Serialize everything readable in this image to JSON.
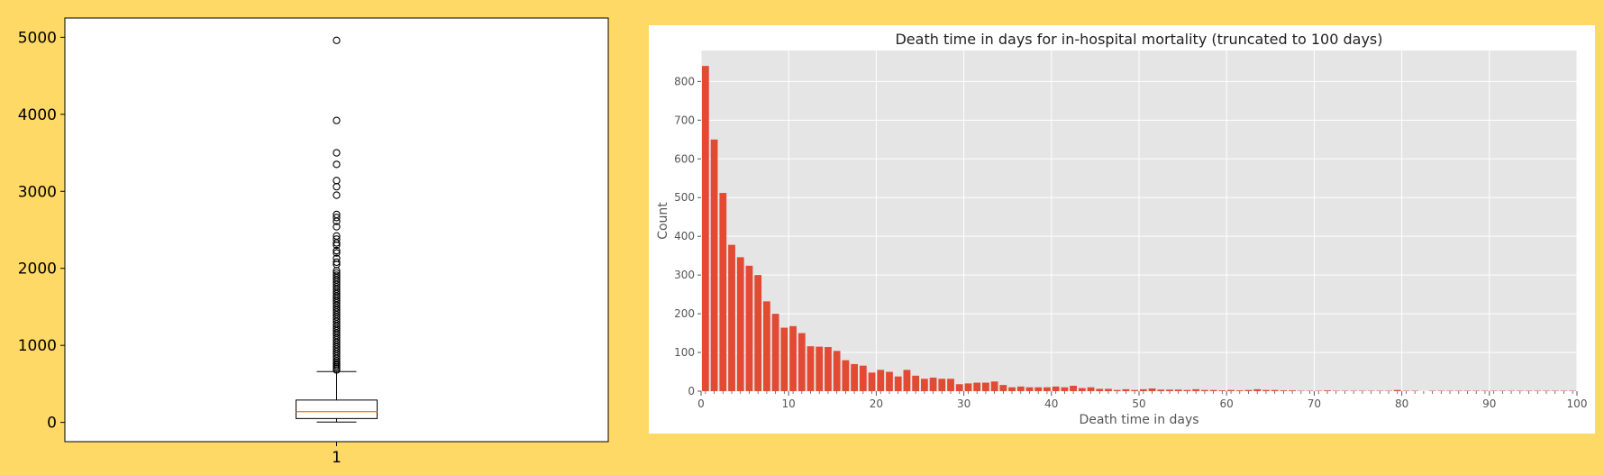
{
  "colors": {
    "background": "#FFD966",
    "hist_bar": "#E24A33",
    "hist_panel_bg": "#E5E5E5",
    "median_line": "#FF7F0E",
    "axis_text": "#555555"
  },
  "chart_data": [
    {
      "type": "boxplot",
      "title": "",
      "xlabel": "",
      "ylabel": "",
      "categories": [
        "1"
      ],
      "ylim": [
        -250,
        5250
      ],
      "yticks": [
        0,
        1000,
        2000,
        3000,
        4000,
        5000
      ],
      "box": {
        "whisker_low": 5,
        "q1": 50,
        "median": 140,
        "q3": 290,
        "whisker_high": 660
      },
      "outliers": [
        4960,
        3920,
        3500,
        3350,
        3140,
        3060,
        2950,
        2700,
        2660,
        2610,
        2540,
        2420,
        2380,
        2330,
        2300,
        2230,
        2200,
        2130,
        2080,
        2050,
        1970,
        1940,
        1910,
        1880,
        1850,
        1820,
        1790,
        1760,
        1730,
        1700,
        1670,
        1640,
        1610,
        1580,
        1550,
        1520,
        1490,
        1460,
        1430,
        1400,
        1370,
        1340,
        1310,
        1280,
        1250,
        1220,
        1190,
        1160,
        1130,
        1100,
        1070,
        1040,
        1010,
        980,
        950,
        920,
        890,
        860,
        830,
        800,
        780,
        760,
        740,
        720,
        700,
        680
      ],
      "grid": false
    },
    {
      "type": "bar",
      "title": "Death time in days for in-hospital mortality (truncated to 100 days)",
      "xlabel": "Death time in days",
      "ylabel": "Count",
      "xlim": [
        0,
        100
      ],
      "ylim": [
        0,
        880
      ],
      "xticks": [
        0,
        10,
        20,
        30,
        40,
        50,
        60,
        70,
        80,
        90,
        100
      ],
      "yticks": [
        0,
        100,
        200,
        300,
        400,
        500,
        600,
        700,
        800
      ],
      "grid": true,
      "categories": [
        0,
        1,
        2,
        3,
        4,
        5,
        6,
        7,
        8,
        9,
        10,
        11,
        12,
        13,
        14,
        15,
        16,
        17,
        18,
        19,
        20,
        21,
        22,
        23,
        24,
        25,
        26,
        27,
        28,
        29,
        30,
        31,
        32,
        33,
        34,
        35,
        36,
        37,
        38,
        39,
        40,
        41,
        42,
        43,
        44,
        45,
        46,
        47,
        48,
        49,
        50,
        51,
        52,
        53,
        54,
        55,
        56,
        57,
        58,
        59,
        60,
        61,
        62,
        63,
        64,
        65,
        66,
        67,
        68,
        69,
        70,
        71,
        72,
        73,
        74,
        75,
        76,
        77,
        78,
        79,
        80,
        81,
        82,
        83,
        84,
        85,
        86,
        87,
        88,
        89,
        90,
        91,
        92,
        93,
        94,
        95,
        96,
        97,
        98,
        99
      ],
      "values": [
        840,
        650,
        512,
        378,
        346,
        324,
        300,
        232,
        200,
        164,
        168,
        150,
        116,
        115,
        114,
        104,
        80,
        70,
        66,
        48,
        55,
        50,
        38,
        55,
        40,
        32,
        35,
        32,
        32,
        18,
        20,
        22,
        22,
        25,
        16,
        10,
        12,
        10,
        10,
        10,
        12,
        10,
        14,
        8,
        10,
        6,
        6,
        3,
        5,
        3,
        5,
        7,
        4,
        4,
        4,
        3,
        5,
        3,
        3,
        2,
        3,
        2,
        3,
        5,
        3,
        3,
        2,
        2,
        1,
        1,
        1,
        2,
        1,
        1,
        1,
        1,
        1,
        1,
        1,
        3,
        1,
        1,
        0,
        1,
        1,
        1,
        1,
        1,
        1,
        1,
        1,
        1,
        1,
        1,
        1,
        1,
        1,
        1,
        1,
        1
      ]
    }
  ]
}
